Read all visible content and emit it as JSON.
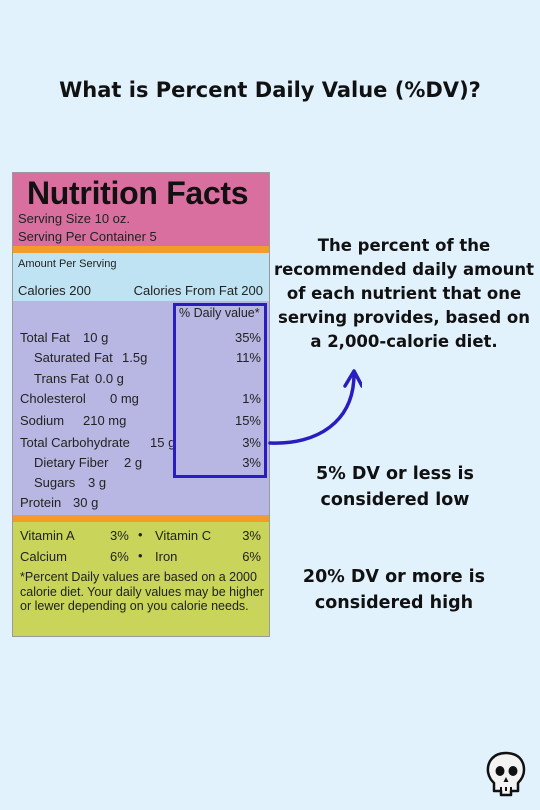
{
  "title": "What is Percent Daily Value (%DV)?",
  "label": {
    "heading": "Nutrition Facts",
    "serving_size": "Serving Size 10 oz.",
    "servings_per_container": "Serving Per Container 5",
    "amount_per_serving": "Amount Per Serving",
    "calories": "Calories 200",
    "calories_from_fat": "Calories From Fat 200",
    "daily_value_header": "% Daily value*",
    "nutrients": [
      {
        "name": "Total Fat",
        "amount": "10 g",
        "dv": "35%"
      },
      {
        "name": "Saturated Fat",
        "amount": "1.5g",
        "dv": "11%"
      },
      {
        "name": "Trans Fat",
        "amount": "0.0 g",
        "dv": ""
      },
      {
        "name": "Cholesterol",
        "amount": "0 mg",
        "dv": "1%"
      },
      {
        "name": "Sodium",
        "amount": "210 mg",
        "dv": "15%"
      },
      {
        "name": "Total Carbohydrate",
        "amount": "15 g",
        "dv": "3%"
      },
      {
        "name": "Dietary Fiber",
        "amount": "2 g",
        "dv": "3%"
      },
      {
        "name": "Sugars",
        "amount": "3 g",
        "dv": ""
      },
      {
        "name": "Protein",
        "amount": "30 g",
        "dv": ""
      }
    ],
    "vitamins": [
      {
        "name": "Vitamin A",
        "dv": "3%"
      },
      {
        "name": "Vitamin C",
        "dv": "3%"
      },
      {
        "name": "Calcium",
        "dv": "6%"
      },
      {
        "name": "Iron",
        "dv": "6%"
      }
    ],
    "bullet": "•",
    "footnote": "*Percent Daily values are based on a 2000 calorie diet. Your daily values may be higher or lewer depending on you calorie needs."
  },
  "definition": "The percent of the recommended daily amount of each nutrient that one serving provides, based on a 2,000-calorie diet.",
  "low_note": "5% DV or less is considered low",
  "high_note": "20% DV or more is considered high",
  "colors": {
    "background": "#e2f2fd",
    "pink": "#d96f9f",
    "orange": "#f39b2b",
    "light_blue": "#bfe3f2",
    "lavender": "#b8b7e3",
    "lime": "#c8d45a",
    "highlight": "#2a1dbf"
  },
  "icons": {
    "logo": "skull-icon",
    "arrow": "curved-arrow-icon"
  }
}
